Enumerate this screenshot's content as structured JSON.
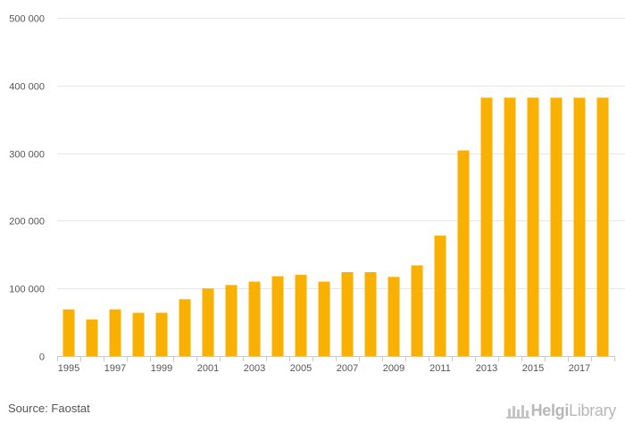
{
  "chart_data": {
    "type": "bar",
    "categories": [
      "1995",
      "1996",
      "1997",
      "1998",
      "1999",
      "2000",
      "2001",
      "2002",
      "2003",
      "2004",
      "2005",
      "2006",
      "2007",
      "2008",
      "2009",
      "2010",
      "2011",
      "2012",
      "2013",
      "2014",
      "2015",
      "2016",
      "2017",
      "2018"
    ],
    "values": [
      69000,
      54000,
      69000,
      64000,
      64000,
      84000,
      100000,
      105000,
      110000,
      118000,
      120000,
      110000,
      124000,
      124000,
      117000,
      134000,
      178000,
      304000,
      382000,
      382000,
      382000,
      382000,
      382000,
      382000
    ],
    "x_tick_labels": [
      "1995",
      "1997",
      "1999",
      "2001",
      "2003",
      "2005",
      "2007",
      "2009",
      "2011",
      "2013",
      "2015",
      "2017"
    ],
    "y_ticks": [
      0,
      100000,
      200000,
      300000,
      400000,
      500000
    ],
    "y_tick_labels": [
      "0",
      "100 000",
      "200 000",
      "300 000",
      "400 000",
      "500 000"
    ],
    "ylim": [
      0,
      500000
    ],
    "title": "",
    "xlabel": "",
    "ylabel": "",
    "grid": true,
    "bar_color": "#f9b000",
    "gridline_color": "#e6e6e6"
  },
  "footer": {
    "source": "Source: Faostat",
    "logo_helgi": "Helgi",
    "logo_library": "Library"
  }
}
